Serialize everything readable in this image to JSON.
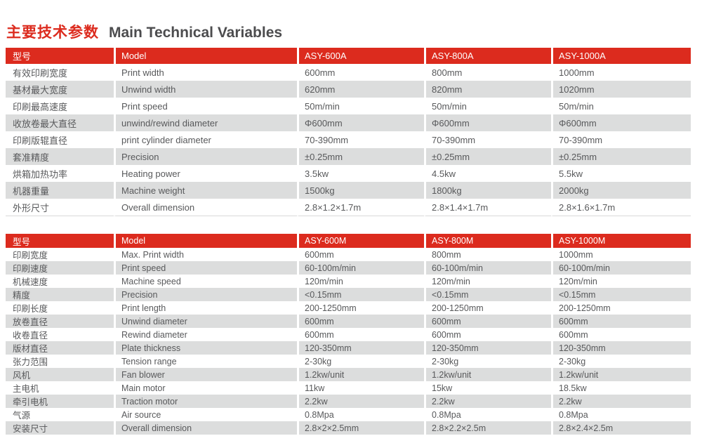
{
  "page_title": {
    "cn": "主要技术参数",
    "en": "Main Technical Variables"
  },
  "colors": {
    "accent_red": "#dc2b1e",
    "stripe_gray": "#dcdddd",
    "text_gray": "#58595b",
    "title_red": "#dc2b1e",
    "title_dark": "#4c4c4e"
  },
  "tables": [
    {
      "header": {
        "param_cn": "型号",
        "param_en": "Model",
        "models": [
          "ASY-600A",
          "ASY-800A",
          "ASY-1000A"
        ]
      },
      "rows": [
        {
          "cn": "有效印刷宽度",
          "en": "Print width",
          "values": [
            "600mm",
            "800mm",
            "1000mm"
          ]
        },
        {
          "cn": "基材最大宽度",
          "en": "Unwind width",
          "values": [
            "620mm",
            "820mm",
            "1020mm"
          ]
        },
        {
          "cn": "印刷最高速度",
          "en": "Print speed",
          "values": [
            "50m/min",
            "50m/min",
            "50m/min"
          ]
        },
        {
          "cn": "收放卷最大直径",
          "en": "unwind/rewind diameter",
          "values": [
            "Φ600mm",
            "Φ600mm",
            "Φ600mm"
          ]
        },
        {
          "cn": "印刷版辊直径",
          "en": "print cylinder diameter",
          "values": [
            "70-390mm",
            "70-390mm",
            "70-390mm"
          ]
        },
        {
          "cn": "套准精度",
          "en": "Precision",
          "values": [
            "±0.25mm",
            "±0.25mm",
            "±0.25mm"
          ]
        },
        {
          "cn": "烘箱加热功率",
          "en": "Heating power",
          "values": [
            "3.5kw",
            "4.5kw",
            "5.5kw"
          ]
        },
        {
          "cn": "机器重量",
          "en": "Machine weight",
          "values": [
            "1500kg",
            "1800kg",
            "2000kg"
          ]
        },
        {
          "cn": "外形尺寸",
          "en": "Overall dimension",
          "values": [
            "2.8×1.2×1.7m",
            "2.8×1.4×1.7m",
            "2.8×1.6×1.7m"
          ]
        }
      ]
    },
    {
      "header": {
        "param_cn": "型号",
        "param_en": "Model",
        "models": [
          "ASY-600M",
          "ASY-800M",
          "ASY-1000M"
        ]
      },
      "rows": [
        {
          "cn": "印刷宽度",
          "en": "Max. Print width",
          "values": [
            "600mm",
            "800mm",
            "1000mm"
          ]
        },
        {
          "cn": "印刷速度",
          "en": "Print speed",
          "values": [
            "60-100m/min",
            "60-100m/min",
            "60-100m/min"
          ]
        },
        {
          "cn": "机械速度",
          "en": "Machine speed",
          "values": [
            "120m/min",
            "120m/min",
            "120m/min"
          ]
        },
        {
          "cn": "精度",
          "en": "Precision",
          "values": [
            "<0.15mm",
            "<0.15mm",
            "<0.15mm"
          ]
        },
        {
          "cn": "印刷长度",
          "en": "Print length",
          "values": [
            "200-1250mm",
            "200-1250mm",
            "200-1250mm"
          ]
        },
        {
          "cn": "放卷直径",
          "en": "Unwind diameter",
          "values": [
            "600mm",
            "600mm",
            "600mm"
          ]
        },
        {
          "cn": "收卷直径",
          "en": "Rewind diameter",
          "values": [
            "600mm",
            "600mm",
            "600mm"
          ]
        },
        {
          "cn": "版材直径",
          "en": "Plate thickness",
          "values": [
            "120-350mm",
            "120-350mm",
            "120-350mm"
          ]
        },
        {
          "cn": "张力范围",
          "en": "Tension range",
          "values": [
            "2-30kg",
            "2-30kg",
            "2-30kg"
          ]
        },
        {
          "cn": "风机",
          "en": "Fan blower",
          "values": [
            "1.2kw/unit",
            "1.2kw/unit",
            "1.2kw/unit"
          ]
        },
        {
          "cn": "主电机",
          "en": "Main motor",
          "values": [
            "11kw",
            "15kw",
            "18.5kw"
          ]
        },
        {
          "cn": "牵引电机",
          "en": "Traction motor",
          "values": [
            "2.2kw",
            "2.2kw",
            "2.2kw"
          ]
        },
        {
          "cn": "气源",
          "en": "Air source",
          "values": [
            "0.8Mpa",
            "0.8Mpa",
            "0.8Mpa"
          ]
        },
        {
          "cn": "安装尺寸",
          "en": "Overall dimension",
          "values": [
            "2.8×2×2.5mm",
            "2.8×2.2×2.5m",
            "2.8×2.4×2.5m"
          ]
        }
      ]
    }
  ]
}
